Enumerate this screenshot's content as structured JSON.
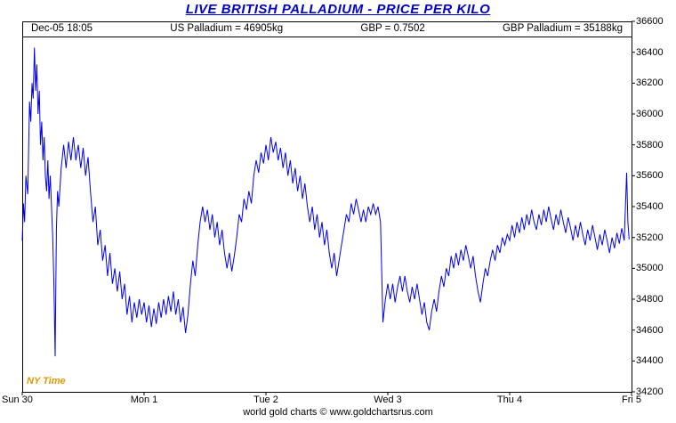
{
  "title": {
    "text": "LIVE BRITISH PALLADIUM - PRICE PER KILO",
    "color": "#0000cc"
  },
  "header": {
    "timestamp": "Dec-05  18:05",
    "us_palladium": "US Palladium = 46905kg",
    "gbp_rate": "GBP = 0.7502",
    "gbp_palladium": "GBP Palladium = 35188kg"
  },
  "ny_time_label": {
    "text": "NY Time",
    "color": "#dd9900"
  },
  "footer": {
    "text": "world gold charts © www.goldchartsrus.com"
  },
  "chart_data": {
    "type": "line",
    "title": "LIVE BRITISH PALLADIUM - PRICE PER KILO",
    "xlabel": "",
    "ylabel": "",
    "grid": false,
    "legend": "none",
    "x_axis": {
      "range": [
        0,
        5
      ],
      "labels": [
        {
          "label": "Sun 30",
          "pos": 0
        },
        {
          "label": "Mon 1",
          "pos": 1
        },
        {
          "label": "Tue 2",
          "pos": 2
        },
        {
          "label": "Wed 3",
          "pos": 3
        },
        {
          "label": "Thu 4",
          "pos": 4
        },
        {
          "label": "Fri 5",
          "pos": 5
        }
      ]
    },
    "y_axis": {
      "side": "right",
      "range": [
        34200,
        36600
      ],
      "ticks": [
        34200,
        34400,
        34600,
        34800,
        35000,
        35200,
        35400,
        35600,
        35800,
        36000,
        36200,
        36400,
        36600
      ]
    },
    "last_price": 35188,
    "series": [
      {
        "name": "GBP Palladium price per kilo",
        "color": "#0000ee",
        "points": [
          [
            0,
            35180
          ],
          [
            0.01,
            35420
          ],
          [
            0.02,
            35300
          ],
          [
            0.03,
            35600
          ],
          [
            0.045,
            35480
          ],
          [
            0.06,
            36080
          ],
          [
            0.07,
            35950
          ],
          [
            0.08,
            36200
          ],
          [
            0.09,
            36100
          ],
          [
            0.1,
            36430
          ],
          [
            0.11,
            36150
          ],
          [
            0.12,
            36320
          ],
          [
            0.13,
            36000
          ],
          [
            0.14,
            36150
          ],
          [
            0.15,
            35800
          ],
          [
            0.16,
            35950
          ],
          [
            0.17,
            35700
          ],
          [
            0.18,
            35850
          ],
          [
            0.19,
            35600
          ],
          [
            0.2,
            35500
          ],
          [
            0.21,
            35700
          ],
          [
            0.22,
            35450
          ],
          [
            0.23,
            35600
          ],
          [
            0.24,
            35400
          ],
          [
            0.25,
            35200
          ],
          [
            0.26,
            34900
          ],
          [
            0.27,
            34430
          ],
          [
            0.28,
            35250
          ],
          [
            0.29,
            35500
          ],
          [
            0.3,
            35400
          ],
          [
            0.32,
            35650
          ],
          [
            0.34,
            35800
          ],
          [
            0.36,
            35650
          ],
          [
            0.38,
            35820
          ],
          [
            0.4,
            35700
          ],
          [
            0.42,
            35850
          ],
          [
            0.44,
            35700
          ],
          [
            0.46,
            35800
          ],
          [
            0.48,
            35650
          ],
          [
            0.5,
            35780
          ],
          [
            0.52,
            35600
          ],
          [
            0.54,
            35720
          ],
          [
            0.56,
            35500
          ],
          [
            0.58,
            35300
          ],
          [
            0.6,
            35400
          ],
          [
            0.62,
            35150
          ],
          [
            0.64,
            35250
          ],
          [
            0.66,
            35050
          ],
          [
            0.68,
            35150
          ],
          [
            0.7,
            34950
          ],
          [
            0.72,
            35100
          ],
          [
            0.74,
            34900
          ],
          [
            0.76,
            35000
          ],
          [
            0.78,
            34850
          ],
          [
            0.8,
            34980
          ],
          [
            0.82,
            34800
          ],
          [
            0.84,
            34900
          ],
          [
            0.86,
            34700
          ],
          [
            0.88,
            34820
          ],
          [
            0.9,
            34650
          ],
          [
            0.92,
            34780
          ],
          [
            0.94,
            34680
          ],
          [
            0.96,
            34800
          ],
          [
            0.98,
            34700
          ],
          [
            1,
            34780
          ],
          [
            1.02,
            34650
          ],
          [
            1.04,
            34760
          ],
          [
            1.06,
            34620
          ],
          [
            1.08,
            34740
          ],
          [
            1.1,
            34640
          ],
          [
            1.12,
            34780
          ],
          [
            1.14,
            34680
          ],
          [
            1.16,
            34800
          ],
          [
            1.18,
            34700
          ],
          [
            1.2,
            34820
          ],
          [
            1.22,
            34720
          ],
          [
            1.24,
            34850
          ],
          [
            1.26,
            34700
          ],
          [
            1.28,
            34800
          ],
          [
            1.3,
            34650
          ],
          [
            1.32,
            34750
          ],
          [
            1.34,
            34580
          ],
          [
            1.36,
            34700
          ],
          [
            1.38,
            34900
          ],
          [
            1.4,
            35050
          ],
          [
            1.42,
            34950
          ],
          [
            1.44,
            35150
          ],
          [
            1.46,
            35300
          ],
          [
            1.48,
            35400
          ],
          [
            1.5,
            35300
          ],
          [
            1.52,
            35380
          ],
          [
            1.54,
            35250
          ],
          [
            1.56,
            35350
          ],
          [
            1.58,
            35200
          ],
          [
            1.6,
            35300
          ],
          [
            1.62,
            35150
          ],
          [
            1.64,
            35250
          ],
          [
            1.66,
            35100
          ],
          [
            1.68,
            35000
          ],
          [
            1.7,
            35100
          ],
          [
            1.72,
            34980
          ],
          [
            1.74,
            35080
          ],
          [
            1.76,
            35200
          ],
          [
            1.78,
            35350
          ],
          [
            1.8,
            35300
          ],
          [
            1.82,
            35450
          ],
          [
            1.84,
            35380
          ],
          [
            1.86,
            35500
          ],
          [
            1.88,
            35420
          ],
          [
            1.9,
            35600
          ],
          [
            1.92,
            35700
          ],
          [
            1.94,
            35620
          ],
          [
            1.96,
            35750
          ],
          [
            1.98,
            35680
          ],
          [
            2,
            35800
          ],
          [
            2.02,
            35700
          ],
          [
            2.04,
            35850
          ],
          [
            2.06,
            35750
          ],
          [
            2.08,
            35820
          ],
          [
            2.1,
            35700
          ],
          [
            2.12,
            35780
          ],
          [
            2.14,
            35650
          ],
          [
            2.16,
            35750
          ],
          [
            2.18,
            35600
          ],
          [
            2.2,
            35700
          ],
          [
            2.22,
            35550
          ],
          [
            2.24,
            35650
          ],
          [
            2.26,
            35500
          ],
          [
            2.28,
            35600
          ],
          [
            2.3,
            35450
          ],
          [
            2.32,
            35550
          ],
          [
            2.34,
            35400
          ],
          [
            2.36,
            35300
          ],
          [
            2.38,
            35400
          ],
          [
            2.4,
            35250
          ],
          [
            2.42,
            35350
          ],
          [
            2.44,
            35200
          ],
          [
            2.46,
            35300
          ],
          [
            2.48,
            35150
          ],
          [
            2.5,
            35250
          ],
          [
            2.52,
            35100
          ],
          [
            2.54,
            35000
          ],
          [
            2.56,
            35100
          ],
          [
            2.58,
            34950
          ],
          [
            2.6,
            35050
          ],
          [
            2.62,
            35150
          ],
          [
            2.64,
            35250
          ],
          [
            2.66,
            35350
          ],
          [
            2.68,
            35300
          ],
          [
            2.7,
            35420
          ],
          [
            2.72,
            35350
          ],
          [
            2.74,
            35450
          ],
          [
            2.76,
            35380
          ],
          [
            2.78,
            35300
          ],
          [
            2.8,
            35380
          ],
          [
            2.82,
            35300
          ],
          [
            2.84,
            35400
          ],
          [
            2.86,
            35350
          ],
          [
            2.88,
            35420
          ],
          [
            2.9,
            35350
          ],
          [
            2.92,
            35400
          ],
          [
            2.94,
            35300
          ],
          [
            2.96,
            34650
          ],
          [
            2.98,
            34800
          ],
          [
            3,
            34900
          ],
          [
            3.02,
            34800
          ],
          [
            3.04,
            34900
          ],
          [
            3.06,
            34780
          ],
          [
            3.08,
            34880
          ],
          [
            3.1,
            34950
          ],
          [
            3.12,
            34850
          ],
          [
            3.14,
            34950
          ],
          [
            3.16,
            34850
          ],
          [
            3.18,
            34780
          ],
          [
            3.2,
            34880
          ],
          [
            3.22,
            34800
          ],
          [
            3.24,
            34900
          ],
          [
            3.26,
            34800
          ],
          [
            3.28,
            34700
          ],
          [
            3.3,
            34780
          ],
          [
            3.32,
            34650
          ],
          [
            3.34,
            34600
          ],
          [
            3.36,
            34720
          ],
          [
            3.38,
            34800
          ],
          [
            3.4,
            34720
          ],
          [
            3.42,
            34850
          ],
          [
            3.44,
            34950
          ],
          [
            3.46,
            34880
          ],
          [
            3.48,
            35000
          ],
          [
            3.5,
            34950
          ],
          [
            3.52,
            35080
          ],
          [
            3.54,
            35000
          ],
          [
            3.56,
            35100
          ],
          [
            3.58,
            35020
          ],
          [
            3.6,
            35120
          ],
          [
            3.62,
            35050
          ],
          [
            3.64,
            35150
          ],
          [
            3.66,
            35080
          ],
          [
            3.68,
            35000
          ],
          [
            3.7,
            35080
          ],
          [
            3.72,
            34950
          ],
          [
            3.74,
            34850
          ],
          [
            3.76,
            34780
          ],
          [
            3.78,
            34900
          ],
          [
            3.8,
            35000
          ],
          [
            3.82,
            34950
          ],
          [
            3.84,
            35050
          ],
          [
            3.86,
            35120
          ],
          [
            3.88,
            35050
          ],
          [
            3.9,
            35150
          ],
          [
            3.92,
            35100
          ],
          [
            3.94,
            35200
          ],
          [
            3.96,
            35150
          ],
          [
            3.98,
            35220
          ],
          [
            4,
            35180
          ],
          [
            4.02,
            35280
          ],
          [
            4.04,
            35200
          ],
          [
            4.06,
            35300
          ],
          [
            4.08,
            35230
          ],
          [
            4.1,
            35330
          ],
          [
            4.12,
            35250
          ],
          [
            4.14,
            35350
          ],
          [
            4.16,
            35280
          ],
          [
            4.18,
            35380
          ],
          [
            4.2,
            35300
          ],
          [
            4.22,
            35250
          ],
          [
            4.24,
            35350
          ],
          [
            4.26,
            35280
          ],
          [
            4.28,
            35380
          ],
          [
            4.3,
            35300
          ],
          [
            4.32,
            35400
          ],
          [
            4.34,
            35320
          ],
          [
            4.36,
            35250
          ],
          [
            4.38,
            35350
          ],
          [
            4.4,
            35280
          ],
          [
            4.42,
            35380
          ],
          [
            4.44,
            35300
          ],
          [
            4.46,
            35230
          ],
          [
            4.48,
            35330
          ],
          [
            4.5,
            35260
          ],
          [
            4.52,
            35180
          ],
          [
            4.54,
            35280
          ],
          [
            4.56,
            35200
          ],
          [
            4.58,
            35300
          ],
          [
            4.6,
            35220
          ],
          [
            4.62,
            35150
          ],
          [
            4.64,
            35250
          ],
          [
            4.66,
            35180
          ],
          [
            4.68,
            35280
          ],
          [
            4.7,
            35200
          ],
          [
            4.72,
            35120
          ],
          [
            4.74,
            35220
          ],
          [
            4.76,
            35150
          ],
          [
            4.78,
            35250
          ],
          [
            4.8,
            35180
          ],
          [
            4.82,
            35100
          ],
          [
            4.84,
            35200
          ],
          [
            4.86,
            35130
          ],
          [
            4.88,
            35230
          ],
          [
            4.9,
            35160
          ],
          [
            4.92,
            35260
          ],
          [
            4.94,
            35180
          ],
          [
            4.96,
            35620
          ],
          [
            4.97,
            35300
          ],
          [
            4.98,
            35188
          ]
        ]
      }
    ]
  }
}
